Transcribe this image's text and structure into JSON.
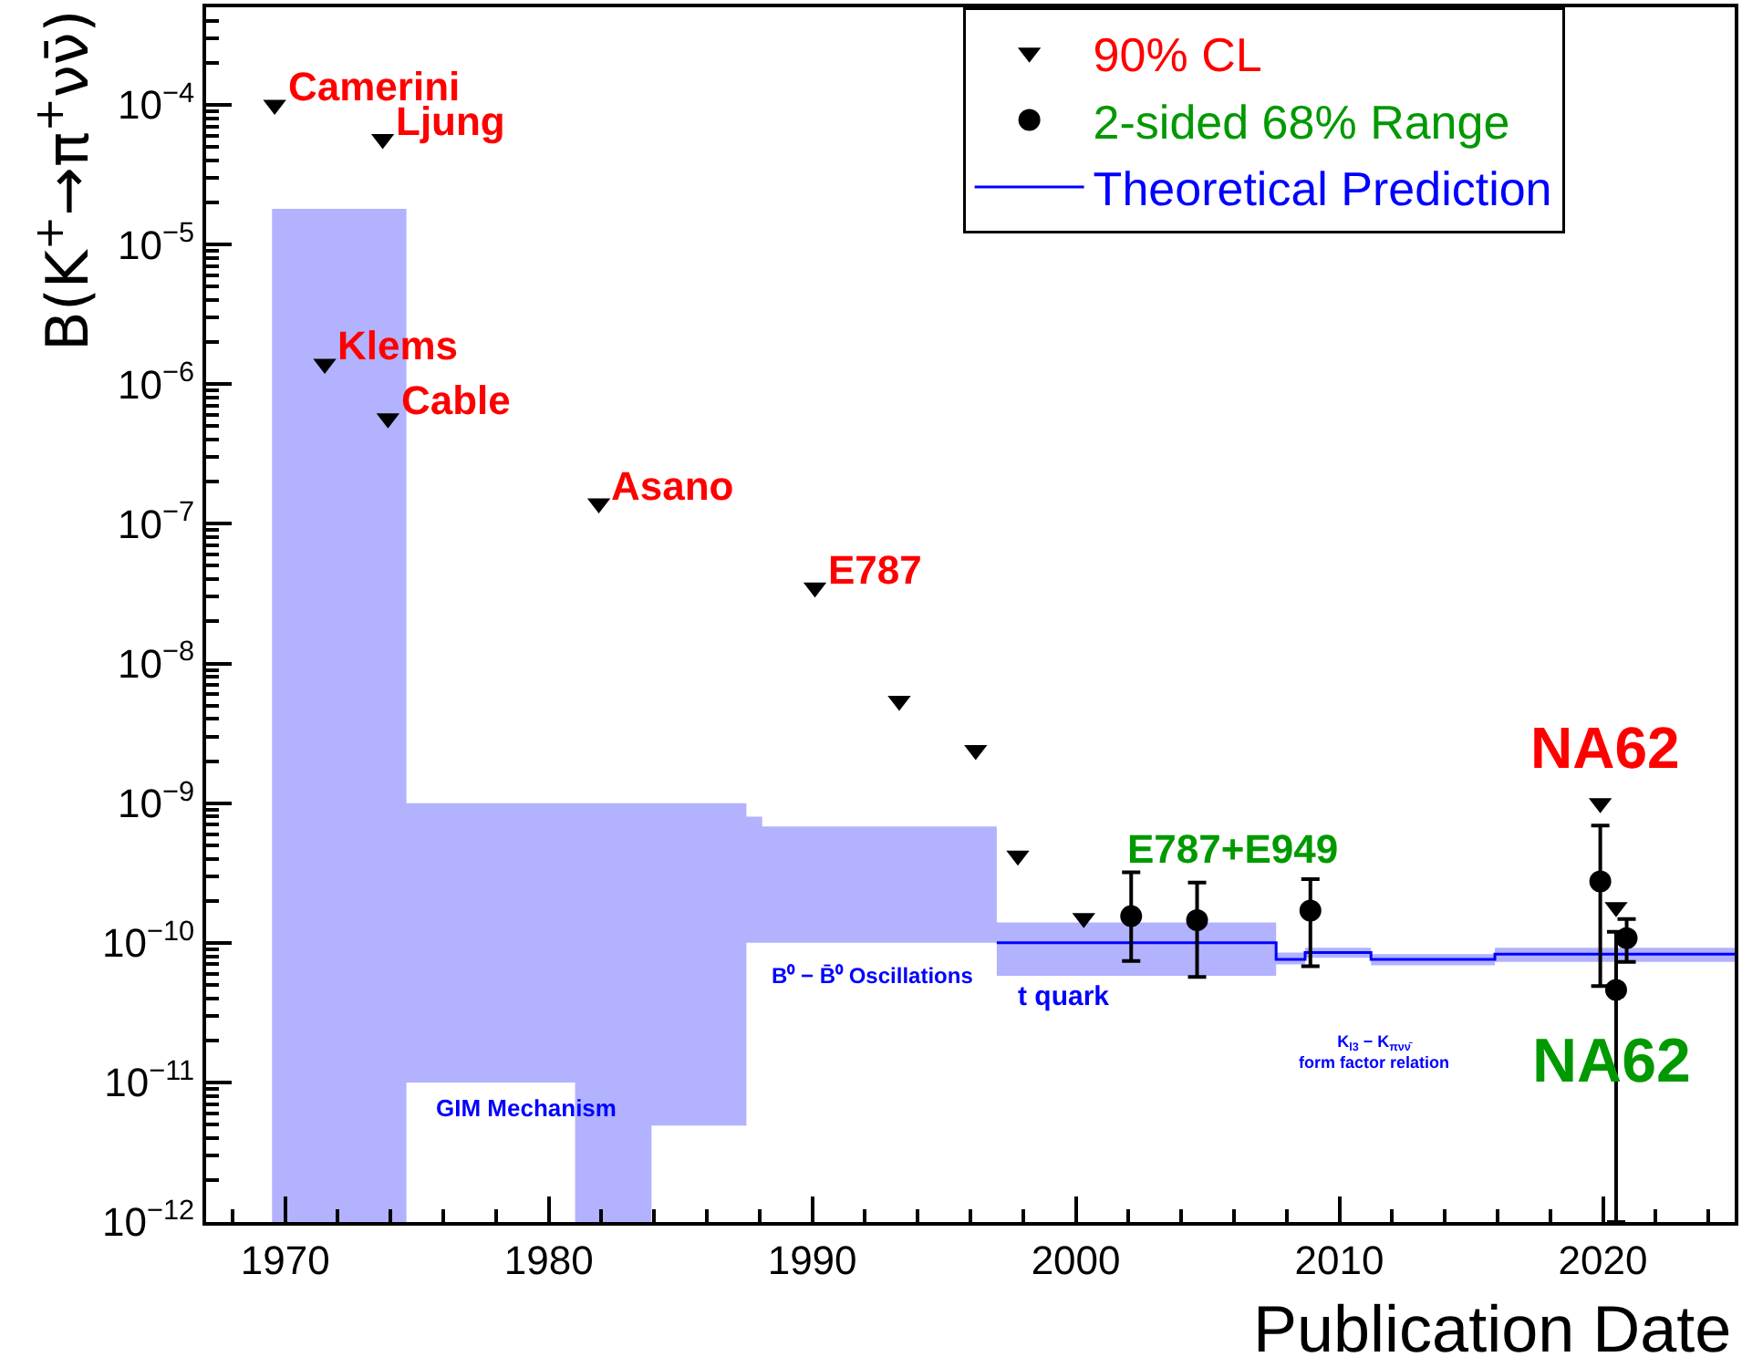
{
  "chart_data": {
    "type": "scatter",
    "xlabel": "Publication Date",
    "ylabel": "B(K$^{+}$→π$^{+}$νν̄)",
    "xlim": [
      1967,
      2025
    ],
    "xticks": [
      1970,
      1980,
      1990,
      2000,
      2010,
      2020
    ],
    "ylim": [
      1e-12,
      0.0005
    ],
    "log": "y",
    "yticks": [
      {
        "value": 1e-12,
        "label": "10$^{−12}$"
      },
      {
        "value": 1e-11,
        "label": "10$^{−11}$"
      },
      {
        "value": 1e-10,
        "label": "10$^{−10}$"
      },
      {
        "value": 1e-09,
        "label": "10$^{−9}$"
      },
      {
        "value": 1e-08,
        "label": "10$^{−8}$"
      },
      {
        "value": 1e-07,
        "label": "10$^{−7}$"
      },
      {
        "value": 1e-06,
        "label": "10$^{−6}$"
      },
      {
        "value": 1e-05,
        "label": "10$^{−5}$"
      },
      {
        "value": 0.0001,
        "label": "10$^{−4}$"
      }
    ],
    "legend": "top right",
    "series": [
      {
        "name": "90% CL",
        "color": "#000000",
        "marker": "triangle",
        "x": [
          1969.6,
          1973.7,
          1971.5,
          1973.9,
          1981.9,
          1990.1,
          1993.3,
          1996.2,
          1997.8,
          2000.3,
          2019.9,
          2020.5
        ],
        "values": [
          0.0001,
          5.7e-05,
          1.4e-06,
          5.7e-07,
          1.4e-07,
          3.5e-08,
          5.4e-09,
          2.4e-09,
          4.2e-10,
          1.5e-10,
          1e-09,
          1.8e-10
        ]
      },
      {
        "name": "2-sided 68% Range",
        "color": "#000000",
        "marker": "circle",
        "x": [
          2002.1,
          2004.6,
          2008.9,
          2019.9,
          2020.5,
          2020.9
        ],
        "values": [
          1.55e-10,
          1.45e-10,
          1.7e-10,
          2.75e-10,
          4.6e-11,
          1.08e-10
        ],
        "errors": [
          [
            7.4e-11,
            3.2e-10
          ],
          [
            5.7e-11,
            2.7e-10
          ],
          [
            6.8e-11,
            2.85e-10
          ],
          [
            4.9e-11,
            6.9e-10
          ],
          [
            1e-12,
            1.2e-10
          ],
          [
            7.3e-11,
            1.48e-10
          ]
        ]
      },
      {
        "name": "Theoretical Prediction",
        "type": "step",
        "color": "#0000ff",
        "x": [
          1969.5,
          1974.6,
          1981.0,
          1983.9,
          1987.5,
          1988.1,
          1997.0,
          2007.6,
          2008.7,
          2011.2,
          2015.9,
          2025
        ],
        "values": [
          null,
          null,
          null,
          null,
          null,
          null,
          1e-10,
          7.6e-11,
          8.5e-11,
          7.6e-11,
          8.3e-11,
          8.3e-11
        ],
        "lower": [
          1e-12,
          1e-11,
          1e-12,
          4.9e-12,
          1e-10,
          1e-10,
          5.8e-11,
          7e-11,
          7.8e-11,
          6.9e-11,
          7.3e-11,
          7.3e-11
        ],
        "upper": [
          1.8e-05,
          1e-09,
          1e-09,
          1e-09,
          8e-10,
          6.8e-10,
          1.4e-10,
          8.5e-11,
          9.2e-11,
          8.3e-11,
          9.2e-11,
          9.2e-11
        ]
      }
    ],
    "annotations": [
      {
        "text": "Camerini",
        "x": 1969.6,
        "y": 0.0001
      },
      {
        "text": "Ljung",
        "x": 1973.7,
        "y": 5.7e-05
      },
      {
        "text": "Klems",
        "x": 1971.5,
        "y": 1.4e-06
      },
      {
        "text": "Cable",
        "x": 1973.9,
        "y": 5.7e-07
      },
      {
        "text": "Asano",
        "x": 1981.9,
        "y": 1.4e-07
      },
      {
        "text": "E787",
        "x": 1990.1,
        "y": 3.5e-08
      },
      "NA62",
      "E787+E949",
      "NA62",
      "GIM Mechanism",
      "B⁰ − B̄⁰ Oscillations",
      "t quark",
      "K$_{l3}$ − K$_{πνν̄}$\nform factor relation"
    ]
  }
}
